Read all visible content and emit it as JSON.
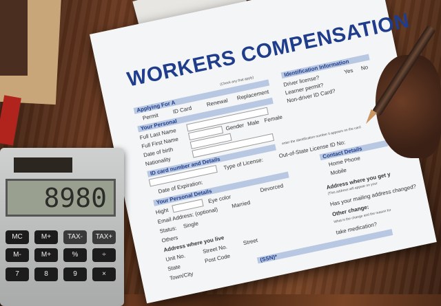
{
  "form": {
    "title": "WORKERS COMPENSATION",
    "applying_for": "Applying For A",
    "check_note": "(Check any that apply)",
    "options": [
      "Permit",
      "ID Card",
      "Renewal",
      "Replacement"
    ],
    "your_personal": "Your Personal",
    "personal_fields": [
      "Full Last Name",
      "Full First Name",
      "Date of birth",
      "Nationality"
    ],
    "gender": "Gender",
    "male": "Male",
    "female": "Female",
    "id_section": "Identification Information",
    "id_questions": [
      "Driver license?",
      "Learner permit?",
      "Non-driver ID Card?"
    ],
    "yes": "Yes",
    "no": "No",
    "id_card_section": "ID card number and Details",
    "id_note": "enter the identification number it appears on the card",
    "type_of_license": "Type of License:",
    "out_of_state": "Out-of-State License ID No:",
    "date_of_expiration": "Date of Expiration:",
    "contact_section": "Contact Details",
    "home_phone": "Home Phone",
    "mobile": "Mobile",
    "personal_details": "Your Personal Details",
    "hight": "Hight",
    "eye_color": "Eye color",
    "email": "Email Address: (optional)",
    "status": "Status:",
    "single": "Single",
    "married": "Married",
    "devorced": "Devorced",
    "others": "Others",
    "address_live": "Address where you live",
    "address_fields": [
      "Unit No.",
      "Street No.",
      "Street",
      "State",
      "Post Code",
      "Town/City"
    ],
    "address_get": "Address where you get y",
    "address_note": "(This address will appear on your",
    "mailing_changed": "Has your mailing address changed?",
    "other_change": "Other change:",
    "other_note": "What is the change and the reason for",
    "ssn": "(SSN)*",
    "medication": "take medication?"
  },
  "calculator": {
    "display": "8980",
    "keys": [
      "MC",
      "M+",
      "TAX-",
      "TAX+",
      "M-",
      "M+",
      "%",
      "÷",
      "7",
      "8",
      "9",
      "×"
    ]
  }
}
